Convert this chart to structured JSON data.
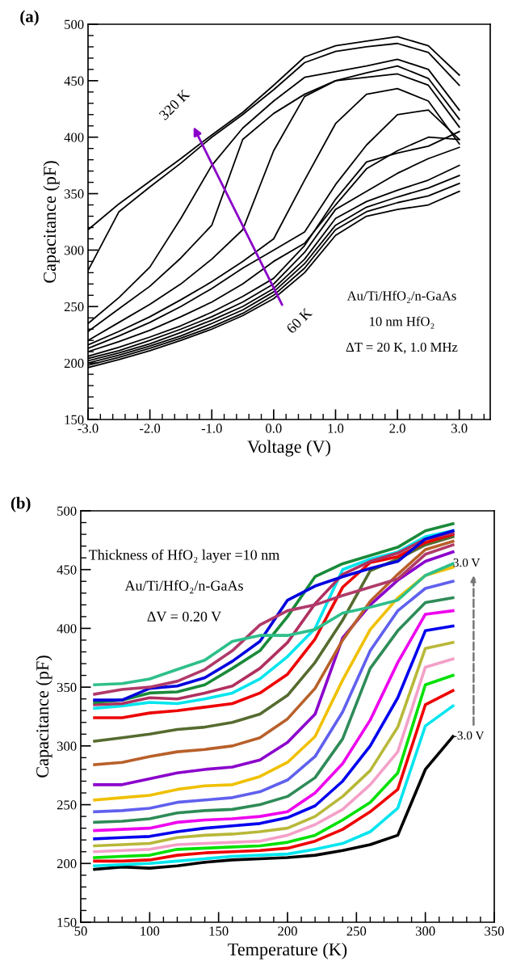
{
  "chart_data": [
    {
      "type": "line",
      "title": "(a)",
      "xlabel": "Voltage (V)",
      "ylabel": "Capacitance (pF)",
      "x": [
        -3.0,
        -2.5,
        -2.0,
        -1.5,
        -1.0,
        -0.5,
        0.0,
        0.5,
        1.0,
        1.5,
        2.0,
        2.5,
        3.0
      ],
      "xlim": [
        -3.0,
        3.5
      ],
      "xticks": [
        {
          "value": -3,
          "label": "-3.0"
        },
        {
          "value": -2,
          "label": "-2.0"
        },
        {
          "value": -1,
          "label": "-1.0"
        },
        {
          "value": 0,
          "label": "0.0"
        },
        {
          "value": 1,
          "label": "1.0"
        },
        {
          "value": 2,
          "label": "2.0"
        },
        {
          "value": 3,
          "label": "3.0"
        }
      ],
      "ylim": [
        150,
        500
      ],
      "yticks": [
        150,
        200,
        250,
        300,
        350,
        400,
        450,
        500
      ],
      "grid": false,
      "legend": false,
      "series": [
        {
          "color": "#000000",
          "values": [
            196,
            203,
            211,
            220,
            230,
            242,
            257,
            280,
            313,
            330,
            336,
            340,
            352
          ]
        },
        {
          "color": "#000000",
          "values": [
            198,
            205,
            213,
            222,
            232,
            244,
            260,
            284,
            318,
            334,
            342,
            348,
            359
          ]
        },
        {
          "color": "#000000",
          "values": [
            200,
            207,
            215,
            224,
            235,
            247,
            263,
            288,
            322,
            338,
            347,
            355,
            366
          ]
        },
        {
          "color": "#000000",
          "values": [
            202,
            209,
            217,
            227,
            238,
            250,
            266,
            292,
            328,
            343,
            353,
            362,
            375
          ]
        },
        {
          "color": "#000000",
          "values": [
            204,
            211,
            220,
            230,
            241,
            254,
            270,
            298,
            336,
            352,
            368,
            381,
            391
          ]
        },
        {
          "color": "#000000",
          "values": [
            206,
            214,
            223,
            233,
            245,
            259,
            275,
            304,
            345,
            378,
            386,
            392,
            405
          ]
        },
        {
          "color": "#000000",
          "values": [
            210,
            219,
            229,
            241,
            254,
            270,
            290,
            306,
            340,
            372,
            388,
            400,
            398
          ]
        },
        {
          "color": "#000000",
          "values": [
            213,
            224,
            236,
            250,
            266,
            284,
            300,
            316,
            358,
            393,
            420,
            424,
            398
          ]
        },
        {
          "color": "#000000",
          "values": [
            216,
            228,
            241,
            256,
            272,
            290,
            310,
            362,
            412,
            438,
            443,
            432,
            394
          ]
        },
        {
          "color": "#000000",
          "values": [
            220,
            236,
            252,
            270,
            292,
            318,
            388,
            436,
            450,
            453,
            456,
            446,
            409
          ]
        },
        {
          "color": "#000000",
          "values": [
            228,
            248,
            268,
            293,
            322,
            398,
            421,
            438,
            450,
            457,
            463,
            452,
            416
          ]
        },
        {
          "color": "#000000",
          "values": [
            235,
            258,
            285,
            328,
            375,
            408,
            432,
            453,
            458,
            463,
            469,
            460,
            424
          ]
        },
        {
          "color": "#000000",
          "values": [
            282,
            334,
            356,
            377,
            400,
            420,
            442,
            466,
            476,
            480,
            483,
            475,
            446
          ]
        },
        {
          "color": "#000000",
          "values": [
            318,
            341,
            361,
            381,
            402,
            422,
            446,
            471,
            481,
            485,
            489,
            481,
            455
          ]
        }
      ],
      "annotations": [
        "320 K",
        "60 K",
        "Au/Ti/HfO₂/n-GaAs",
        "10 nm HfO₂",
        "ΔT = 20 K, 1.0 MHz"
      ]
    },
    {
      "type": "line",
      "title": "(b)",
      "xlabel": "Temperature (K)",
      "ylabel": "Capacitance (pF)",
      "x": [
        60,
        80,
        100,
        120,
        140,
        160,
        180,
        200,
        220,
        240,
        260,
        280,
        300,
        320
      ],
      "xlim": [
        50,
        350
      ],
      "xticks": [
        50,
        100,
        150,
        200,
        250,
        300,
        350
      ],
      "ylim": [
        150,
        500
      ],
      "yticks": [
        150,
        200,
        250,
        300,
        350,
        400,
        450,
        500
      ],
      "grid": false,
      "legend": false,
      "series": [
        {
          "name": "-3.0 V",
          "color": "#000000",
          "values": [
            195,
            197,
            196,
            198,
            201,
            203,
            204,
            205,
            207,
            211,
            216,
            224,
            280,
            308
          ]
        },
        {
          "color": "#00e5ee",
          "values": [
            198,
            199,
            200,
            202,
            204,
            206,
            207,
            208,
            212,
            217,
            227,
            247,
            317,
            334
          ]
        },
        {
          "color": "#ee0000",
          "values": [
            202,
            202,
            203,
            207,
            209,
            210,
            211,
            213,
            219,
            229,
            244,
            263,
            335,
            347
          ]
        },
        {
          "color": "#00e000",
          "values": [
            205,
            206,
            207,
            212,
            213,
            214,
            215,
            218,
            224,
            237,
            252,
            277,
            352,
            360
          ]
        },
        {
          "color": "#f4a0c8",
          "values": [
            210,
            211,
            212,
            216,
            217,
            218,
            219,
            224,
            233,
            246,
            267,
            295,
            367,
            374
          ]
        },
        {
          "color": "#b8b83a",
          "values": [
            215,
            216,
            217,
            222,
            224,
            225,
            227,
            230,
            240,
            257,
            279,
            316,
            383,
            388
          ]
        },
        {
          "color": "#0000ee",
          "values": [
            221,
            222,
            223,
            227,
            230,
            232,
            234,
            239,
            249,
            270,
            300,
            341,
            398,
            402
          ]
        },
        {
          "color": "#ee00ee",
          "values": [
            228,
            229,
            230,
            235,
            237,
            238,
            240,
            244,
            260,
            285,
            322,
            371,
            412,
            415
          ]
        },
        {
          "color": "#2e8b57",
          "values": [
            235,
            236,
            238,
            243,
            245,
            246,
            250,
            257,
            273,
            306,
            366,
            398,
            422,
            426
          ]
        },
        {
          "color": "#6060ee",
          "values": [
            244,
            245,
            247,
            252,
            254,
            256,
            261,
            271,
            291,
            329,
            381,
            415,
            434,
            440
          ]
        },
        {
          "color": "#f0c000",
          "values": [
            254,
            256,
            258,
            263,
            266,
            267,
            274,
            286,
            308,
            356,
            399,
            426,
            445,
            452
          ]
        },
        {
          "color": "#8b00cc",
          "values": [
            267,
            267,
            272,
            277,
            280,
            282,
            288,
            303,
            327,
            392,
            420,
            441,
            457,
            465
          ]
        },
        {
          "color": "#b8602a",
          "values": [
            284,
            286,
            291,
            295,
            297,
            300,
            307,
            323,
            349,
            390,
            423,
            446,
            467,
            474
          ]
        },
        {
          "color": "#556b2f",
          "values": [
            304,
            307,
            310,
            314,
            316,
            320,
            327,
            343,
            371,
            407,
            449,
            459,
            471,
            478
          ]
        },
        {
          "color": "#ee0000",
          "values": [
            324,
            324,
            328,
            330,
            333,
            336,
            345,
            361,
            391,
            435,
            456,
            461,
            473,
            480
          ]
        },
        {
          "color": "#00e5ee",
          "values": [
            332,
            334,
            337,
            336,
            340,
            345,
            357,
            376,
            400,
            450,
            459,
            465,
            478,
            483
          ]
        },
        {
          "color": "#b03060",
          "values": [
            335,
            336,
            341,
            340,
            345,
            351,
            366,
            388,
            421,
            446,
            457,
            464,
            476,
            481
          ]
        },
        {
          "color": "#1a8a3a",
          "values": [
            337,
            339,
            345,
            346,
            352,
            366,
            381,
            410,
            444,
            455,
            462,
            469,
            483,
            489
          ]
        },
        {
          "color": "#0000dd",
          "values": [
            339,
            339,
            349,
            351,
            358,
            372,
            389,
            424,
            436,
            444,
            451,
            457,
            476,
            483
          ]
        },
        {
          "color": "#b03a6a",
          "values": [
            344,
            348,
            350,
            355,
            365,
            381,
            403,
            415,
            420,
            428,
            435,
            442,
            463,
            471
          ]
        },
        {
          "name": "3.0 V",
          "color": "#2ebf8a",
          "values": [
            352,
            353,
            357,
            365,
            373,
            389,
            394,
            394,
            399,
            413,
            418,
            424,
            445,
            455
          ]
        }
      ],
      "annotations": [
        "Thickness of HfO₂ layer =10 nm",
        "Au/Ti/HfO₂/n-GaAs",
        "ΔV = 0.20 V"
      ]
    }
  ]
}
